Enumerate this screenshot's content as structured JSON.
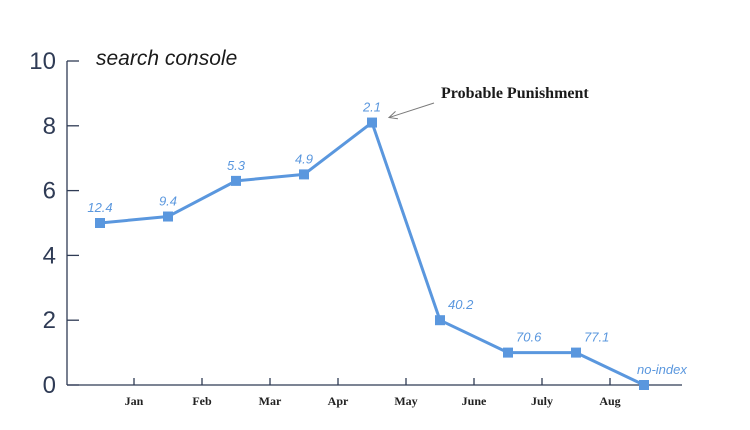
{
  "chart_data": {
    "type": "line",
    "title": "search console",
    "xlabel": "",
    "ylabel": "",
    "ylim": [
      0,
      10
    ],
    "yticks": [
      0,
      2,
      4,
      6,
      8,
      10
    ],
    "x_tick_labels": [
      "Jan",
      "Feb",
      "Mar",
      "Apr",
      "May",
      "June",
      "July",
      "Aug"
    ],
    "points": [
      {
        "y": 5.0,
        "label": "12.4"
      },
      {
        "y": 5.2,
        "label": "9.4"
      },
      {
        "y": 6.3,
        "label": "5.3"
      },
      {
        "y": 6.5,
        "label": "4.9"
      },
      {
        "y": 8.1,
        "label": "2.1"
      },
      {
        "y": 2.0,
        "label": "40.2"
      },
      {
        "y": 1.0,
        "label": "70.6"
      },
      {
        "y": 1.0,
        "label": "77.1"
      },
      {
        "y": 0.0,
        "label": "no-index"
      }
    ],
    "annotation": {
      "text": "Probable Punishment",
      "point_index": 4
    },
    "grid": false,
    "colors": {
      "line": "#5a97de",
      "axis": "#2f3b55",
      "label": "#5a97de"
    }
  }
}
